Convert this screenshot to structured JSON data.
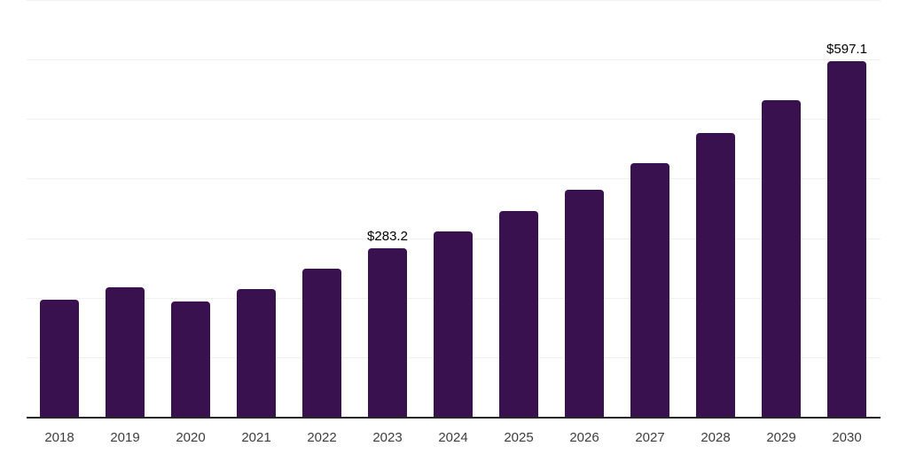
{
  "chart_data": {
    "type": "bar",
    "title": "",
    "xlabel": "",
    "ylabel": "",
    "categories": [
      "2018",
      "2019",
      "2020",
      "2021",
      "2022",
      "2023",
      "2024",
      "2025",
      "2026",
      "2027",
      "2028",
      "2029",
      "2030"
    ],
    "values": [
      196,
      218,
      194,
      215,
      249,
      283.2,
      311,
      345,
      382,
      426,
      477,
      532,
      597.1
    ],
    "value_labels": [
      "",
      "",
      "",
      "",
      "",
      "$283.2",
      "",
      "",
      "",
      "",
      "",
      "",
      "$597.1"
    ],
    "ylim": [
      0,
      700
    ],
    "gridline_step": 100,
    "grid": "horizontal",
    "legend": "none",
    "colors": {
      "bar": "#38114E",
      "gridline": "#f0f0f0",
      "axis": "#262626",
      "tick_label": "#3d3d3d",
      "value_label": "#000000",
      "background": "#ffffff"
    }
  }
}
